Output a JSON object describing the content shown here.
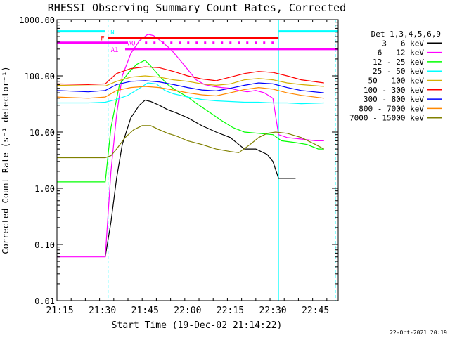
{
  "chart_data": {
    "type": "line",
    "title": "RHESSI Observing Summary Count Rates, Corrected",
    "xlabel": "Start Time (19-Dec-02 21:14:22)",
    "ylabel": "Corrected Count Rate (s⁻¹ detector⁻¹)",
    "y_scale": "log",
    "ylim": [
      0.01,
      1000
    ],
    "xlim": [
      "21:14",
      "22:53"
    ],
    "x_ticks": [
      "21:15",
      "21:30",
      "21:45",
      "22:00",
      "22:15",
      "22:30",
      "22:45"
    ],
    "y_ticks": [
      "1000.00",
      "100.00",
      "10.00",
      "1.00",
      "0.10",
      "0.01"
    ],
    "grid": false,
    "legend_position": "right",
    "legend_title": "Det 1,3,4,5,6,9",
    "footer_date": "22-Oct-2021 20:19",
    "series": [
      {
        "name": "3 - 6 keV",
        "color": "#000000",
        "points": [
          [
            "21:31",
            0.06
          ],
          [
            "21:33",
            0.25
          ],
          [
            "21:35",
            1.5
          ],
          [
            "21:37",
            6
          ],
          [
            "21:40",
            18
          ],
          [
            "21:43",
            30
          ],
          [
            "21:45",
            37
          ],
          [
            "21:47",
            35
          ],
          [
            "21:50",
            30
          ],
          [
            "21:53",
            25
          ],
          [
            "21:56",
            22
          ],
          [
            "22:00",
            18
          ],
          [
            "22:05",
            13
          ],
          [
            "22:10",
            10
          ],
          [
            "22:15",
            8
          ],
          [
            "22:18",
            6
          ],
          [
            "22:20",
            5
          ],
          [
            "22:24",
            5
          ],
          [
            "22:28",
            4
          ],
          [
            "22:30",
            3
          ],
          [
            "22:32",
            1.5
          ],
          [
            "22:35",
            1.5
          ],
          [
            "22:38",
            1.5
          ]
        ]
      },
      {
        "name": "6 - 12 keV",
        "color": "#ff00ff",
        "points": [
          [
            "21:14",
            0.06
          ],
          [
            "21:31",
            0.06
          ],
          [
            "21:33",
            2
          ],
          [
            "21:35",
            20
          ],
          [
            "21:37",
            100
          ],
          [
            "21:40",
            250
          ],
          [
            "21:43",
            420
          ],
          [
            "21:46",
            550
          ],
          [
            "21:48",
            520
          ],
          [
            "21:51",
            400
          ],
          [
            "21:54",
            300
          ],
          [
            "21:57",
            200
          ],
          [
            "22:00",
            130
          ],
          [
            "22:03",
            85
          ],
          [
            "22:06",
            70
          ],
          [
            "22:09",
            65
          ],
          [
            "22:12",
            62
          ],
          [
            "22:15",
            60
          ],
          [
            "22:18",
            55
          ],
          [
            "22:21",
            52
          ],
          [
            "22:24",
            55
          ],
          [
            "22:27",
            50
          ],
          [
            "22:30",
            40
          ],
          [
            "22:32",
            9
          ],
          [
            "22:35",
            8
          ],
          [
            "22:40",
            7.5
          ],
          [
            "22:45",
            7
          ],
          [
            "22:48",
            7
          ]
        ]
      },
      {
        "name": "12 - 25 keV",
        "color": "#00ff00",
        "points": [
          [
            "21:14",
            1.3
          ],
          [
            "21:31",
            1.3
          ],
          [
            "21:33",
            12
          ],
          [
            "21:36",
            70
          ],
          [
            "21:39",
            110
          ],
          [
            "21:42",
            160
          ],
          [
            "21:45",
            190
          ],
          [
            "21:47",
            150
          ],
          [
            "21:50",
            100
          ],
          [
            "21:53",
            70
          ],
          [
            "21:56",
            55
          ],
          [
            "22:00",
            42
          ],
          [
            "22:04",
            30
          ],
          [
            "22:08",
            22
          ],
          [
            "22:12",
            16
          ],
          [
            "22:16",
            12
          ],
          [
            "22:20",
            10
          ],
          [
            "22:25",
            9.5
          ],
          [
            "22:30",
            9
          ],
          [
            "22:33",
            7
          ],
          [
            "22:38",
            6.5
          ],
          [
            "22:42",
            6
          ],
          [
            "22:46",
            5
          ],
          [
            "22:48",
            5
          ]
        ]
      },
      {
        "name": "25 - 50 keV",
        "color": "#00ffff",
        "points": [
          [
            "21:14",
            33
          ],
          [
            "21:25",
            33
          ],
          [
            "21:31",
            34
          ],
          [
            "21:35",
            38
          ],
          [
            "21:39",
            45
          ],
          [
            "21:43",
            60
          ],
          [
            "21:46",
            75
          ],
          [
            "21:49",
            72
          ],
          [
            "21:52",
            55
          ],
          [
            "21:55",
            48
          ],
          [
            "22:00",
            42
          ],
          [
            "22:05",
            38
          ],
          [
            "22:10",
            36
          ],
          [
            "22:15",
            35
          ],
          [
            "22:20",
            34
          ],
          [
            "22:25",
            34
          ],
          [
            "22:30",
            33
          ],
          [
            "22:35",
            33
          ],
          [
            "22:40",
            32
          ],
          [
            "22:48",
            33
          ]
        ]
      },
      {
        "name": "50 - 100 keV",
        "color": "#d4b000",
        "points": [
          [
            "21:14",
            68
          ],
          [
            "21:25",
            66
          ],
          [
            "21:31",
            66
          ],
          [
            "21:35",
            80
          ],
          [
            "21:40",
            95
          ],
          [
            "21:45",
            100
          ],
          [
            "21:50",
            95
          ],
          [
            "21:55",
            85
          ],
          [
            "22:00",
            80
          ],
          [
            "22:05",
            72
          ],
          [
            "22:10",
            68
          ],
          [
            "22:15",
            72
          ],
          [
            "22:20",
            85
          ],
          [
            "22:25",
            90
          ],
          [
            "22:30",
            85
          ],
          [
            "22:35",
            75
          ],
          [
            "22:40",
            70
          ],
          [
            "22:48",
            65
          ]
        ]
      },
      {
        "name": "100 - 300 keV",
        "color": "#ff0000",
        "points": [
          [
            "21:14",
            72
          ],
          [
            "21:25",
            70
          ],
          [
            "21:31",
            72
          ],
          [
            "21:35",
            110
          ],
          [
            "21:40",
            135
          ],
          [
            "21:45",
            145
          ],
          [
            "21:50",
            140
          ],
          [
            "21:55",
            120
          ],
          [
            "22:00",
            100
          ],
          [
            "22:05",
            88
          ],
          [
            "22:10",
            82
          ],
          [
            "22:15",
            95
          ],
          [
            "22:20",
            110
          ],
          [
            "22:25",
            120
          ],
          [
            "22:30",
            115
          ],
          [
            "22:35",
            100
          ],
          [
            "22:40",
            85
          ],
          [
            "22:48",
            75
          ]
        ]
      },
      {
        "name": "300 - 800 keV",
        "color": "#0000ff",
        "points": [
          [
            "21:14",
            55
          ],
          [
            "21:25",
            52
          ],
          [
            "21:31",
            55
          ],
          [
            "21:35",
            70
          ],
          [
            "21:40",
            80
          ],
          [
            "21:45",
            82
          ],
          [
            "21:50",
            78
          ],
          [
            "21:55",
            70
          ],
          [
            "22:00",
            62
          ],
          [
            "22:05",
            56
          ],
          [
            "22:10",
            54
          ],
          [
            "22:15",
            60
          ],
          [
            "22:20",
            68
          ],
          [
            "22:25",
            75
          ],
          [
            "22:30",
            72
          ],
          [
            "22:35",
            62
          ],
          [
            "22:40",
            55
          ],
          [
            "22:48",
            50
          ]
        ]
      },
      {
        "name": "800 - 7000 keV",
        "color": "#ff8800",
        "points": [
          [
            "21:14",
            42
          ],
          [
            "21:25",
            40
          ],
          [
            "21:31",
            42
          ],
          [
            "21:35",
            55
          ],
          [
            "21:40",
            62
          ],
          [
            "21:45",
            65
          ],
          [
            "21:50",
            62
          ],
          [
            "21:55",
            56
          ],
          [
            "22:00",
            50
          ],
          [
            "22:05",
            46
          ],
          [
            "22:10",
            44
          ],
          [
            "22:15",
            50
          ],
          [
            "22:20",
            57
          ],
          [
            "22:25",
            62
          ],
          [
            "22:30",
            58
          ],
          [
            "22:35",
            50
          ],
          [
            "22:40",
            45
          ],
          [
            "22:48",
            40
          ]
        ]
      },
      {
        "name": "7000 - 15000 keV",
        "color": "#808000",
        "points": [
          [
            "21:14",
            3.5
          ],
          [
            "21:31",
            3.5
          ],
          [
            "21:33",
            3.8
          ],
          [
            "21:35",
            5
          ],
          [
            "21:38",
            8
          ],
          [
            "21:41",
            11
          ],
          [
            "21:44",
            13
          ],
          [
            "21:47",
            13
          ],
          [
            "21:50",
            11
          ],
          [
            "21:53",
            9.5
          ],
          [
            "21:56",
            8.5
          ],
          [
            "22:00",
            7
          ],
          [
            "22:05",
            6
          ],
          [
            "22:10",
            5
          ],
          [
            "22:15",
            4.5
          ],
          [
            "22:18",
            4.3
          ],
          [
            "22:22",
            6
          ],
          [
            "22:25",
            8
          ],
          [
            "22:28",
            9.5
          ],
          [
            "22:31",
            10
          ],
          [
            "22:35",
            9.5
          ],
          [
            "22:40",
            8
          ],
          [
            "22:45",
            6
          ],
          [
            "22:48",
            5
          ]
        ]
      }
    ],
    "state_bars": [
      {
        "label": "N",
        "color": "#00ffff",
        "value": 620,
        "segments": [
          [
            "21:14",
            "21:31"
          ],
          [
            "22:32",
            "22:53"
          ]
        ]
      },
      {
        "label": "F",
        "color": "#ff0000",
        "value": 480,
        "segments": [
          [
            "21:32",
            "22:32"
          ]
        ]
      },
      {
        "label": "AO",
        "color": "#ff00ff",
        "value": 390,
        "segments": [
          [
            "21:14",
            "21:39"
          ]
        ],
        "dotted_segments": [
          [
            "21:45",
            "22:32"
          ]
        ]
      },
      {
        "label": "A1",
        "color": "#ff00ff",
        "value": 300,
        "segments": [
          [
            "21:38",
            "22:53"
          ]
        ]
      }
    ],
    "vertical_markers": [
      {
        "time": "21:14",
        "color": "#00ffff",
        "style": "solid"
      },
      {
        "time": "21:32",
        "color": "#00ffff",
        "style": "dashed"
      },
      {
        "time": "22:32",
        "color": "#00ffff",
        "style": "solid"
      },
      {
        "time": "22:52",
        "color": "#00ffff",
        "style": "dashed"
      }
    ]
  }
}
